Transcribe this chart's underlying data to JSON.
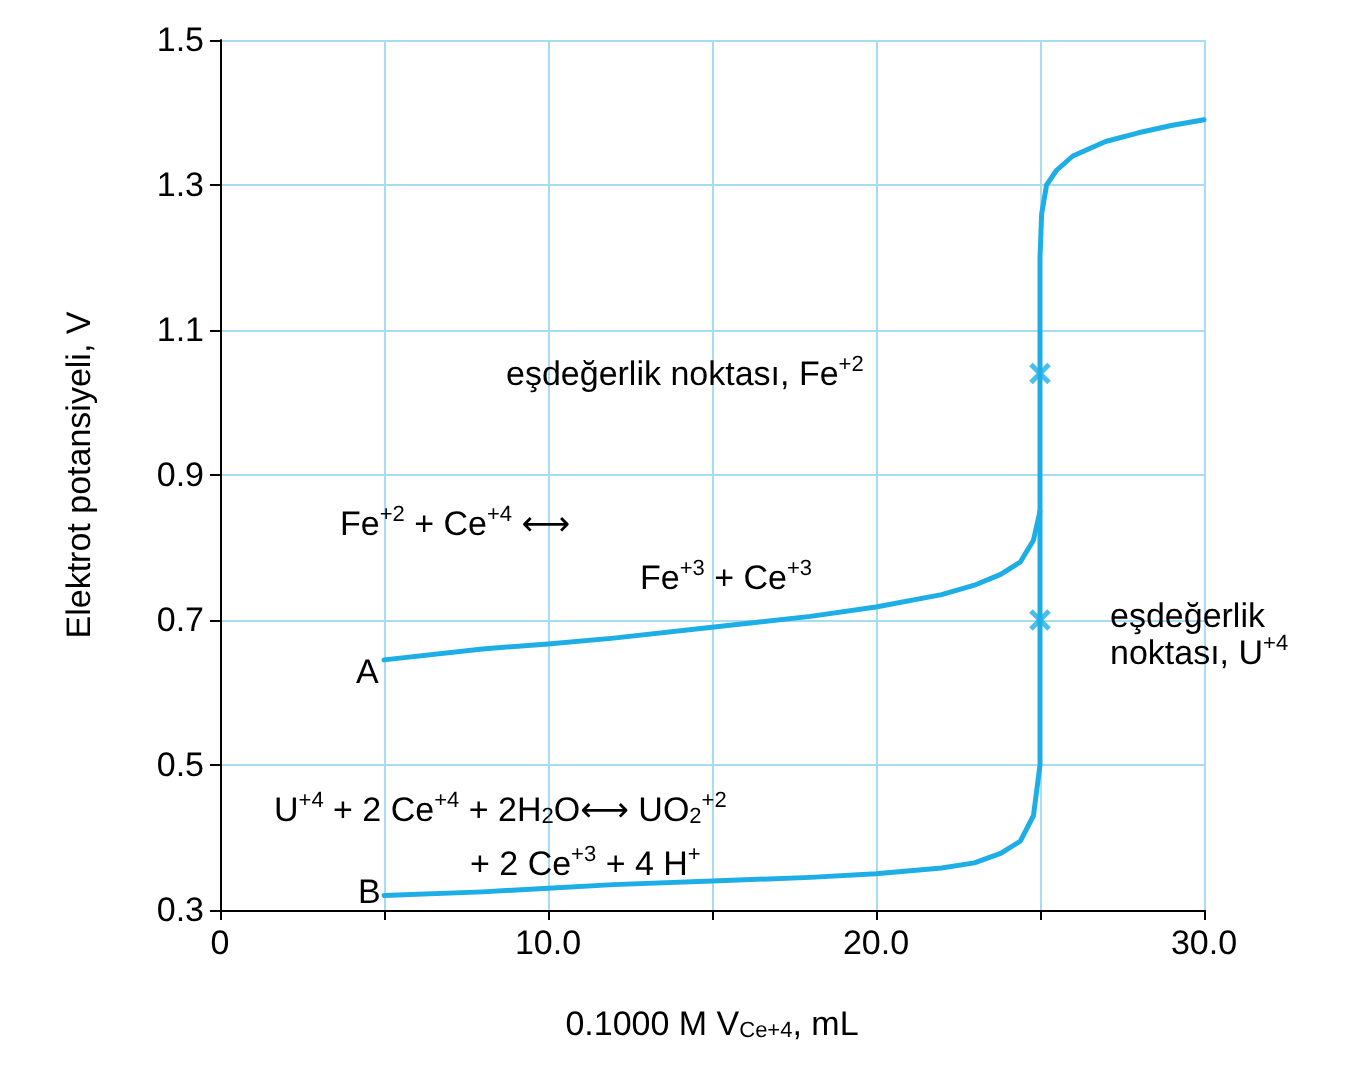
{
  "chart_data": {
    "type": "line",
    "xlabel": "0.1000 M V$_{Ce+4}$, mL",
    "ylabel": "Elektrot potansiyeli, V",
    "xlim": [
      0,
      30
    ],
    "ylim": [
      0.3,
      1.5
    ],
    "xticks": [
      0,
      {
        "value": 5,
        "label": null
      },
      {
        "value": 10,
        "label": "10.0"
      },
      {
        "value": 15,
        "label": null
      },
      {
        "value": 20,
        "label": "20.0"
      },
      {
        "value": 25,
        "label": null
      },
      {
        "value": 30,
        "label": "30.0"
      }
    ],
    "yticks": [
      0.3,
      0.5,
      0.7,
      0.9,
      1.1,
      1.3,
      1.5
    ],
    "grid": true,
    "marker": "none",
    "line_style": "solid",
    "series": [
      {
        "color": "#1eaee6",
        "x": [
          5,
          8,
          10,
          12,
          15,
          18,
          20,
          22,
          23,
          23.8,
          24.4,
          24.8,
          25,
          25,
          25.05,
          25.2,
          25.5,
          26,
          27,
          28,
          29,
          30
        ],
        "values": [
          0.645,
          0.66,
          0.667,
          0.675,
          0.69,
          0.705,
          0.718,
          0.735,
          0.748,
          0.763,
          0.78,
          0.81,
          0.85,
          1.2,
          1.26,
          1.3,
          1.32,
          1.34,
          1.36,
          1.372,
          1.382,
          1.39
        ]
      },
      {
        "color": "#1eaee6",
        "x": [
          5,
          8,
          10,
          12,
          15,
          18,
          20,
          22,
          23,
          23.8,
          24.4,
          24.8,
          25,
          25
        ],
        "values": [
          0.32,
          0.325,
          0.33,
          0.335,
          0.34,
          0.345,
          0.35,
          0.358,
          0.365,
          0.378,
          0.395,
          0.43,
          0.5,
          0.85
        ]
      },
      {
        "type": "scatter",
        "marker": "cross",
        "color": "#1eaee6",
        "x": [
          25,
          25
        ],
        "values": [
          1.04,
          0.7
        ]
      }
    ],
    "annotations": [
      "eşdeğerlik noktası, Fe$^{+2}$",
      "eşdeğerlik\nnoktası, U$^{+4}$",
      "A",
      "B",
      "Fe$^{+2}$ + Ce$^{+4}$ ⟷",
      "Fe$^{+3}$ + Ce$^{+3}$",
      "U$^{+4}$ + 2 Ce$^{+4}$ + 2H$_{2}$O⟷ UO$_{2}$$^{+2}$",
      "+ 2 Ce$^{+3}$ + 4 H$^{+}$"
    ]
  }
}
